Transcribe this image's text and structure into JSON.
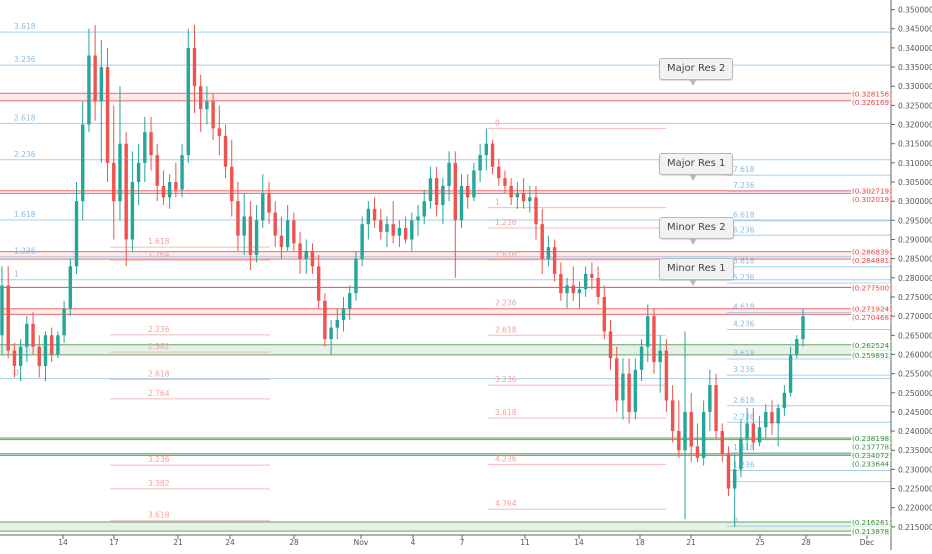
{
  "chart_data": {
    "type": "candlestick",
    "title": "",
    "xlabel": "",
    "ylabel": "",
    "ylim": [
      0.2134,
      0.3525
    ],
    "grid": false,
    "colors": {
      "up": "#26a69a",
      "down": "#ef5350",
      "level_red": "#e84a4a",
      "level_green": "#3f8f3f",
      "fib_blue": "#89bde6",
      "fib_pink": "#f4a0a0",
      "axis_text": "#555555"
    },
    "x_ticks": [
      "14",
      "17",
      "21",
      "24",
      "28",
      "Nov",
      "4",
      "7",
      "11",
      "14",
      "18",
      "21",
      "25",
      "28",
      "Dec"
    ],
    "y_ticks": [
      "0.350000",
      "0.345000",
      "0.340000",
      "0.335000",
      "0.330000",
      "0.325000",
      "0.320000",
      "0.315000",
      "0.310000",
      "0.305000",
      "0.300000",
      "0.295000",
      "0.290000",
      "0.285000",
      "0.280000",
      "0.275000",
      "0.270000",
      "0.265000",
      "0.260000",
      "0.255000",
      "0.250000",
      "0.245000",
      "0.240000",
      "0.235000",
      "0.230000",
      "0.225000",
      "0.220000",
      "0.215000"
    ],
    "price_tags": [
      {
        "text": "(0.328156)",
        "value": 0.328156,
        "color": "#e84a4a"
      },
      {
        "text": "(0.326169)",
        "value": 0.326169,
        "color": "#e84a4a"
      },
      {
        "text": "(0.302719)",
        "value": 0.302719,
        "color": "#e84a4a"
      },
      {
        "text": "(0.302019)",
        "value": 0.302019,
        "color": "#e84a4a"
      },
      {
        "text": "(0.286839)",
        "value": 0.286839,
        "color": "#e84a4a"
      },
      {
        "text": "(0.284881)",
        "value": 0.284881,
        "color": "#e84a4a"
      },
      {
        "text": "(0.277500)",
        "value": 0.2775,
        "color": "#e84a4a"
      },
      {
        "text": "(0.271924)",
        "value": 0.271924,
        "color": "#e84a4a"
      },
      {
        "text": "(0.270468)",
        "value": 0.270468,
        "color": "#e84a4a"
      },
      {
        "text": "(0.262524)",
        "value": 0.262524,
        "color": "#3f8f3f"
      },
      {
        "text": "(0.259891)",
        "value": 0.259891,
        "color": "#3f8f3f"
      },
      {
        "text": "(0.238198)",
        "value": 0.238198,
        "color": "#3f8f3f"
      },
      {
        "text": "(0.237778)",
        "value": 0.237778,
        "color": "#3f8f3f"
      },
      {
        "text": "(0.234072)",
        "value": 0.234072,
        "color": "#3f8f3f"
      },
      {
        "text": "(0.233644)",
        "value": 0.233644,
        "color": "#3f8f3f"
      },
      {
        "text": "(0.216261)",
        "value": 0.216261,
        "color": "#3f8f3f"
      },
      {
        "text": "(0.213878)",
        "value": 0.213878,
        "color": "#3f8f3f"
      }
    ],
    "zones": [
      {
        "top": 0.328156,
        "bottom": 0.326169,
        "color": "#e84a4a"
      },
      {
        "top": 0.302719,
        "bottom": 0.302019,
        "color": "#e84a4a"
      },
      {
        "top": 0.286839,
        "bottom": 0.284881,
        "color": "#e84a4a"
      },
      {
        "top": 0.271924,
        "bottom": 0.270468,
        "color": "#e84a4a"
      },
      {
        "top": 0.262524,
        "bottom": 0.259891,
        "color": "#3f8f3f"
      },
      {
        "top": 0.238198,
        "bottom": 0.237778,
        "color": "#3f8f3f"
      },
      {
        "top": 0.234072,
        "bottom": 0.233644,
        "color": "#3f8f3f"
      },
      {
        "top": 0.216261,
        "bottom": 0.213878,
        "color": "#3f8f3f"
      }
    ],
    "plain_levels": [
      {
        "value": 0.2775,
        "color": "#e84a4a"
      }
    ],
    "fib_sets": [
      {
        "color": "#89bde6",
        "x_start": "",
        "x_end": "",
        "levels": [
          {
            "label": "3.618",
            "value": 0.3441
          },
          {
            "label": "3.236",
            "value": 0.3355
          },
          {
            "label": "2.618",
            "value": 0.3203
          },
          {
            "label": "2.236",
            "value": 0.3108
          },
          {
            "label": "1.618",
            "value": 0.2951
          },
          {
            "label": "1.236",
            "value": 0.2855
          },
          {
            "label": "1",
            "value": 0.2795
          },
          {
            "label": "0",
            "value": 0.2537
          }
        ]
      },
      {
        "color": "#f4a0a0",
        "levels": [
          {
            "label": "1.618",
            "value": 0.288
          },
          {
            "label": "1.764",
            "value": 0.2846
          },
          {
            "label": "2.236",
            "value": 0.2651
          },
          {
            "label": "2.382",
            "value": 0.2606
          },
          {
            "label": "2.618",
            "value": 0.2535
          },
          {
            "label": "2.764",
            "value": 0.2484
          },
          {
            "label": "3.236",
            "value": 0.2311
          },
          {
            "label": "3.382",
            "value": 0.2249
          },
          {
            "label": "3.618",
            "value": 0.2166
          }
        ]
      },
      {
        "color": "#f4a0a0",
        "levels": [
          {
            "label": "0",
            "value": 0.319
          },
          {
            "label": "1",
            "value": 0.2983
          },
          {
            "label": "1.236",
            "value": 0.293
          },
          {
            "label": "1.618",
            "value": 0.2847
          },
          {
            "label": "2.236",
            "value": 0.272
          },
          {
            "label": "2.618",
            "value": 0.265
          },
          {
            "label": "3.236",
            "value": 0.252
          },
          {
            "label": "3.618",
            "value": 0.2434
          },
          {
            "label": "4.236",
            "value": 0.2313
          },
          {
            "label": "4.764",
            "value": 0.2196
          }
        ]
      },
      {
        "color": "#89bde6",
        "levels": [
          {
            "label": "7.618",
            "value": 0.3068
          },
          {
            "label": "7.236",
            "value": 0.3026
          },
          {
            "label": "6.618",
            "value": 0.2949
          },
          {
            "label": "6.236",
            "value": 0.2911
          },
          {
            "label": "5.618",
            "value": 0.2829
          },
          {
            "label": "5.236",
            "value": 0.2786
          },
          {
            "label": "4.618",
            "value": 0.2709
          },
          {
            "label": "4.236",
            "value": 0.2665
          },
          {
            "label": "3.618",
            "value": 0.2588
          },
          {
            "label": "3.236",
            "value": 0.2546
          },
          {
            "label": "2.618",
            "value": 0.2466
          },
          {
            "label": "2.236",
            "value": 0.2423
          },
          {
            "label": "1.618",
            "value": 0.2343
          },
          {
            "label": "1.236",
            "value": 0.2297
          },
          {
            "label": "1",
            "value": 0.2268
          },
          {
            "label": "0",
            "value": 0.2152
          }
        ]
      }
    ],
    "annotations": [
      "Major Res 2",
      "Major Res 1",
      "Minor Res 2",
      "Minor Res 1"
    ],
    "candles": [
      [
        0.265,
        0.283,
        0.26,
        0.278
      ],
      [
        0.278,
        0.283,
        0.259,
        0.261
      ],
      [
        0.261,
        0.263,
        0.254,
        0.257
      ],
      [
        0.257,
        0.264,
        0.253,
        0.262
      ],
      [
        0.262,
        0.27,
        0.258,
        0.268
      ],
      [
        0.268,
        0.271,
        0.26,
        0.262
      ],
      [
        0.262,
        0.265,
        0.254,
        0.257
      ],
      [
        0.257,
        0.266,
        0.253,
        0.265
      ],
      [
        0.265,
        0.267,
        0.258,
        0.26
      ],
      [
        0.26,
        0.266,
        0.259,
        0.265
      ],
      [
        0.265,
        0.274,
        0.263,
        0.272
      ],
      [
        0.272,
        0.285,
        0.27,
        0.283
      ],
      [
        0.283,
        0.305,
        0.281,
        0.3
      ],
      [
        0.3,
        0.326,
        0.295,
        0.32
      ],
      [
        0.32,
        0.345,
        0.318,
        0.338
      ],
      [
        0.338,
        0.346,
        0.321,
        0.326
      ],
      [
        0.326,
        0.342,
        0.31,
        0.335
      ],
      [
        0.335,
        0.34,
        0.305,
        0.31
      ],
      [
        0.31,
        0.325,
        0.29,
        0.3
      ],
      [
        0.3,
        0.33,
        0.295,
        0.315
      ],
      [
        0.315,
        0.318,
        0.283,
        0.29
      ],
      [
        0.29,
        0.313,
        0.287,
        0.305
      ],
      [
        0.305,
        0.315,
        0.299,
        0.31
      ],
      [
        0.31,
        0.322,
        0.305,
        0.318
      ],
      [
        0.318,
        0.322,
        0.308,
        0.312
      ],
      [
        0.312,
        0.315,
        0.3,
        0.304
      ],
      [
        0.304,
        0.308,
        0.299,
        0.301
      ],
      [
        0.301,
        0.307,
        0.298,
        0.305
      ],
      [
        0.305,
        0.31,
        0.301,
        0.303
      ],
      [
        0.303,
        0.315,
        0.301,
        0.312
      ],
      [
        0.312,
        0.345,
        0.31,
        0.34
      ],
      [
        0.34,
        0.346,
        0.323,
        0.33
      ],
      [
        0.33,
        0.333,
        0.318,
        0.324
      ],
      [
        0.324,
        0.33,
        0.32,
        0.326
      ],
      [
        0.326,
        0.328,
        0.316,
        0.319
      ],
      [
        0.319,
        0.325,
        0.312,
        0.317
      ],
      [
        0.317,
        0.32,
        0.306,
        0.309
      ],
      [
        0.309,
        0.316,
        0.296,
        0.3
      ],
      [
        0.3,
        0.305,
        0.287,
        0.291
      ],
      [
        0.291,
        0.302,
        0.286,
        0.296
      ],
      [
        0.296,
        0.3,
        0.282,
        0.286
      ],
      [
        0.286,
        0.299,
        0.284,
        0.295
      ],
      [
        0.295,
        0.307,
        0.293,
        0.302
      ],
      [
        0.302,
        0.305,
        0.294,
        0.297
      ],
      [
        0.297,
        0.3,
        0.288,
        0.291
      ],
      [
        0.291,
        0.296,
        0.285,
        0.288
      ],
      [
        0.288,
        0.299,
        0.287,
        0.295
      ],
      [
        0.295,
        0.297,
        0.287,
        0.289
      ],
      [
        0.289,
        0.292,
        0.281,
        0.285
      ],
      [
        0.285,
        0.29,
        0.281,
        0.287
      ],
      [
        0.287,
        0.289,
        0.281,
        0.283
      ],
      [
        0.283,
        0.286,
        0.272,
        0.274
      ],
      [
        0.274,
        0.276,
        0.262,
        0.264
      ],
      [
        0.264,
        0.269,
        0.26,
        0.267
      ],
      [
        0.267,
        0.272,
        0.264,
        0.269
      ],
      [
        0.269,
        0.275,
        0.266,
        0.272
      ],
      [
        0.272,
        0.278,
        0.269,
        0.276
      ],
      [
        0.276,
        0.287,
        0.274,
        0.285
      ],
      [
        0.285,
        0.296,
        0.283,
        0.294
      ],
      [
        0.294,
        0.3,
        0.29,
        0.298
      ],
      [
        0.298,
        0.301,
        0.293,
        0.295
      ],
      [
        0.295,
        0.298,
        0.29,
        0.292
      ],
      [
        0.292,
        0.296,
        0.288,
        0.294
      ],
      [
        0.294,
        0.3,
        0.289,
        0.291
      ],
      [
        0.291,
        0.295,
        0.288,
        0.293
      ],
      [
        0.293,
        0.296,
        0.289,
        0.29
      ],
      [
        0.29,
        0.297,
        0.287,
        0.295
      ],
      [
        0.295,
        0.299,
        0.291,
        0.296
      ],
      [
        0.296,
        0.303,
        0.294,
        0.3
      ],
      [
        0.3,
        0.309,
        0.298,
        0.306
      ],
      [
        0.306,
        0.309,
        0.296,
        0.299
      ],
      [
        0.299,
        0.306,
        0.294,
        0.304
      ],
      [
        0.304,
        0.313,
        0.3,
        0.31
      ],
      [
        0.31,
        0.313,
        0.28,
        0.295
      ],
      [
        0.295,
        0.307,
        0.293,
        0.304
      ],
      [
        0.304,
        0.307,
        0.298,
        0.301
      ],
      [
        0.301,
        0.31,
        0.3,
        0.308
      ],
      [
        0.308,
        0.315,
        0.305,
        0.312
      ],
      [
        0.312,
        0.319,
        0.308,
        0.315
      ],
      [
        0.315,
        0.316,
        0.307,
        0.309
      ],
      [
        0.309,
        0.311,
        0.304,
        0.306
      ],
      [
        0.306,
        0.308,
        0.302,
        0.304
      ],
      [
        0.304,
        0.306,
        0.299,
        0.301
      ],
      [
        0.301,
        0.305,
        0.298,
        0.302
      ],
      [
        0.302,
        0.306,
        0.298,
        0.3
      ],
      [
        0.3,
        0.304,
        0.297,
        0.301
      ],
      [
        0.301,
        0.304,
        0.29,
        0.294
      ],
      [
        0.294,
        0.298,
        0.281,
        0.285
      ],
      [
        0.285,
        0.291,
        0.283,
        0.288
      ],
      [
        0.288,
        0.29,
        0.279,
        0.281
      ],
      [
        0.281,
        0.284,
        0.274,
        0.276
      ],
      [
        0.276,
        0.28,
        0.272,
        0.278
      ],
      [
        0.278,
        0.283,
        0.274,
        0.276
      ],
      [
        0.276,
        0.279,
        0.272,
        0.277
      ],
      [
        0.277,
        0.283,
        0.275,
        0.281
      ],
      [
        0.281,
        0.284,
        0.277,
        0.28
      ],
      [
        0.28,
        0.283,
        0.273,
        0.275
      ],
      [
        0.275,
        0.278,
        0.264,
        0.266
      ],
      [
        0.266,
        0.269,
        0.256,
        0.259
      ],
      [
        0.259,
        0.262,
        0.245,
        0.248
      ],
      [
        0.248,
        0.259,
        0.243,
        0.255
      ],
      [
        0.255,
        0.259,
        0.242,
        0.245
      ],
      [
        0.245,
        0.259,
        0.243,
        0.256
      ],
      [
        0.256,
        0.264,
        0.253,
        0.262
      ],
      [
        0.262,
        0.273,
        0.258,
        0.27
      ],
      [
        0.27,
        0.272,
        0.255,
        0.258
      ],
      [
        0.258,
        0.265,
        0.25,
        0.261
      ],
      [
        0.261,
        0.264,
        0.245,
        0.248
      ],
      [
        0.248,
        0.252,
        0.237,
        0.24
      ],
      [
        0.24,
        0.248,
        0.233,
        0.235
      ],
      [
        0.235,
        0.266,
        0.217,
        0.245
      ],
      [
        0.245,
        0.25,
        0.232,
        0.236
      ],
      [
        0.236,
        0.242,
        0.232,
        0.233
      ],
      [
        0.233,
        0.248,
        0.231,
        0.245
      ],
      [
        0.245,
        0.256,
        0.24,
        0.252
      ],
      [
        0.252,
        0.255,
        0.238,
        0.24
      ],
      [
        0.24,
        0.242,
        0.232,
        0.234
      ],
      [
        0.234,
        0.236,
        0.223,
        0.225
      ],
      [
        0.225,
        0.234,
        0.215,
        0.23
      ],
      [
        0.23,
        0.243,
        0.228,
        0.238
      ],
      [
        0.238,
        0.246,
        0.235,
        0.242
      ],
      [
        0.242,
        0.246,
        0.235,
        0.237
      ],
      [
        0.237,
        0.244,
        0.236,
        0.241
      ],
      [
        0.241,
        0.247,
        0.238,
        0.245
      ],
      [
        0.245,
        0.248,
        0.239,
        0.242
      ],
      [
        0.242,
        0.247,
        0.236,
        0.246
      ],
      [
        0.246,
        0.252,
        0.244,
        0.25
      ],
      [
        0.25,
        0.262,
        0.249,
        0.26
      ],
      [
        0.26,
        0.265,
        0.259,
        0.264
      ],
      [
        0.264,
        0.272,
        0.262,
        0.27
      ]
    ]
  }
}
